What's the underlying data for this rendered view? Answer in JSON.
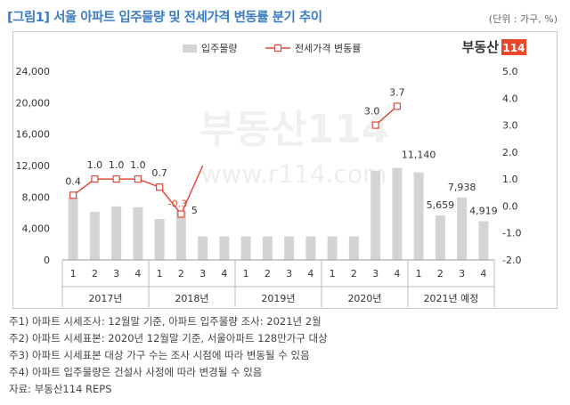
{
  "title": "[그림1] 서울 아파트 입주물량 및 전세가격 변동률 분기 추이",
  "unit_label": "(단위 : 가구, %)",
  "logo": {
    "text": "부동산",
    "badge": "114",
    "color": "#e8472e"
  },
  "watermark": {
    "text": "www.r114.com"
  },
  "notes": [
    "주1) 아파트 시세조사: 12월말 기준, 아파트 입주물량 조사: 2021년 2월",
    "주2) 아파트 시세표본: 2020년 12월말 기준, 서울아파트 128만가구 대상",
    "주3) 아파트 시세표본 대상 가구 수는 조사 시점에 따라 변동될 수 있음",
    "주4) 아파트 입주물량은 건설사 사정에 따라 변경될 수 있음",
    "자료: 부동산114 REPS"
  ],
  "chart_data": {
    "type": "bar+line",
    "title": "서울 아파트 입주물량 및 전세가격 변동률 분기 추이",
    "categories": [
      "1",
      "2",
      "3",
      "4",
      "1",
      "2",
      "3",
      "4",
      "1",
      "2",
      "3",
      "4",
      "1",
      "2",
      "3",
      "4",
      "1",
      "2",
      "3",
      "4"
    ],
    "year_groups": [
      {
        "label": "2017년",
        "span": 4
      },
      {
        "label": "2018년",
        "span": 4
      },
      {
        "label": "2019년",
        "span": 4
      },
      {
        "label": "2020년",
        "span": 4
      },
      {
        "label": "2021년 예정",
        "span": 4
      }
    ],
    "series": [
      {
        "name": "입주물량",
        "type": "bar",
        "axis": "left",
        "color": "#d4d4d4",
        "values": [
          8000,
          6100,
          6800,
          6700,
          5200,
          6200,
          3000,
          3000,
          3000,
          3000,
          3000,
          3000,
          3000,
          3000,
          11300,
          11700,
          11140,
          5659,
          7938,
          4919
        ],
        "labels": [
          "",
          "",
          "",
          "",
          "",
          "",
          "",
          "",
          "",
          "",
          "",
          "",
          "",
          "",
          "",
          "",
          "11,140",
          "5,659",
          "7,938",
          "4,919"
        ]
      },
      {
        "name": "전세가격 변동률",
        "type": "line",
        "axis": "right",
        "color": "#e04a3a",
        "values": [
          0.4,
          1.0,
          1.0,
          1.0,
          0.7,
          -0.3,
          1.5,
          null,
          null,
          null,
          null,
          null,
          null,
          null,
          3.0,
          3.7,
          null,
          null,
          null,
          null
        ],
        "labels": [
          "0.4",
          "1.0",
          "1.0",
          "1.0",
          "0.7",
          "-0.3",
          "",
          "",
          "",
          "",
          "",
          "",
          "",
          "",
          "3.0",
          "3.7",
          "",
          "",
          "",
          ""
        ]
      }
    ],
    "left_axis": {
      "min": 0,
      "max": 24000,
      "step": 4000,
      "tick_labels": [
        "0",
        "4,000",
        "8,000",
        "12,000",
        "16,000",
        "20,000",
        "24,000"
      ]
    },
    "right_axis": {
      "min": -2.0,
      "max": 5.0,
      "step": 1.0,
      "tick_labels": [
        "-2.0",
        "-1.0",
        "0.0",
        "1.0",
        "2.0",
        "3.0",
        "4.0",
        "5.0"
      ]
    },
    "legend": {
      "position": "top",
      "items": [
        "입주물량",
        "전세가격 변동률"
      ]
    },
    "stray_label": "5"
  }
}
